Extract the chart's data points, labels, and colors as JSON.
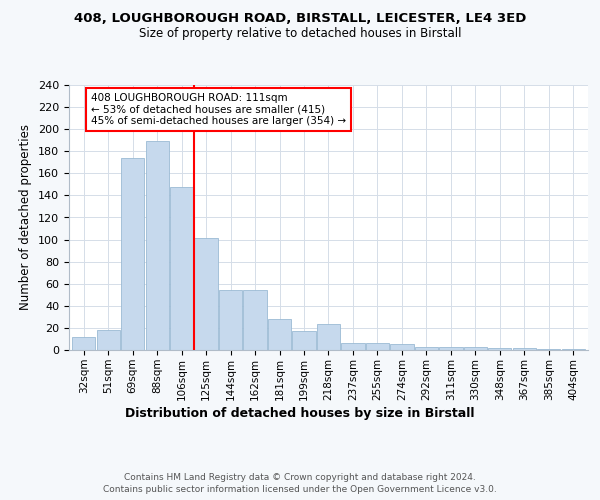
{
  "title1": "408, LOUGHBOROUGH ROAD, BIRSTALL, LEICESTER, LE4 3ED",
  "title2": "Size of property relative to detached houses in Birstall",
  "xlabel": "Distribution of detached houses by size in Birstall",
  "ylabel": "Number of detached properties",
  "bins": [
    "32sqm",
    "51sqm",
    "69sqm",
    "88sqm",
    "106sqm",
    "125sqm",
    "144sqm",
    "162sqm",
    "181sqm",
    "199sqm",
    "218sqm",
    "237sqm",
    "255sqm",
    "274sqm",
    "292sqm",
    "311sqm",
    "330sqm",
    "348sqm",
    "367sqm",
    "385sqm",
    "404sqm"
  ],
  "bar_heights": [
    12,
    18,
    174,
    189,
    148,
    101,
    54,
    54,
    28,
    17,
    24,
    6,
    6,
    5,
    3,
    3,
    3,
    2,
    2,
    1,
    1
  ],
  "bar_color": "#c6d9ed",
  "bar_edge_color": "#9bbad4",
  "vline_x_index": 4.5,
  "annotation_text": "408 LOUGHBOROUGH ROAD: 111sqm\n← 53% of detached houses are smaller (415)\n45% of semi-detached houses are larger (354) →",
  "annotation_box_color": "white",
  "annotation_box_edgecolor": "red",
  "vline_color": "red",
  "footer1": "Contains HM Land Registry data © Crown copyright and database right 2024.",
  "footer2": "Contains public sector information licensed under the Open Government Licence v3.0.",
  "bg_color": "#f5f8fb",
  "plot_bg_color": "white",
  "yticks": [
    0,
    20,
    40,
    60,
    80,
    100,
    120,
    140,
    160,
    180,
    200,
    220,
    240
  ],
  "ylim": [
    0,
    240
  ],
  "grid_color": "#d5dde8"
}
